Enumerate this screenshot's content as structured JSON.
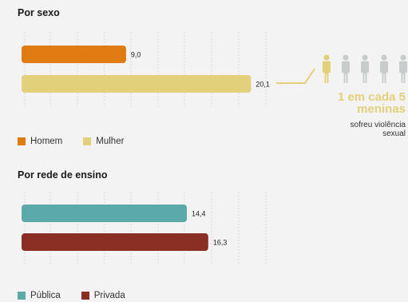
{
  "chart_data": [
    {
      "type": "bar",
      "orientation": "horizontal",
      "title": "Por sexo",
      "categories": [
        "Homem",
        "Mulher"
      ],
      "values": [
        9.0,
        20.1
      ],
      "value_labels": [
        "9,0",
        "20,1"
      ],
      "colors": [
        "#e07b12",
        "#e3d07a"
      ],
      "grid": true,
      "legend": "bottom-left"
    },
    {
      "type": "bar",
      "orientation": "horizontal",
      "title": "Por rede de ensino",
      "categories": [
        "Pública",
        "Privada"
      ],
      "values": [
        14.4,
        16.3
      ],
      "value_labels": [
        "14,4",
        "16,3"
      ],
      "colors": [
        "#5ba9a8",
        "#8b2f24"
      ],
      "grid": true,
      "legend": "bottom-left"
    }
  ],
  "callout": {
    "headline_line1": "1 em cada 5",
    "headline_line2": "meninas",
    "sub_line1": "sofreu violência",
    "sub_line2": "sexual",
    "highlight_color": "#e3d07a",
    "person_color": "#c9cccc",
    "people_count": 5,
    "highlighted_index": 0
  }
}
